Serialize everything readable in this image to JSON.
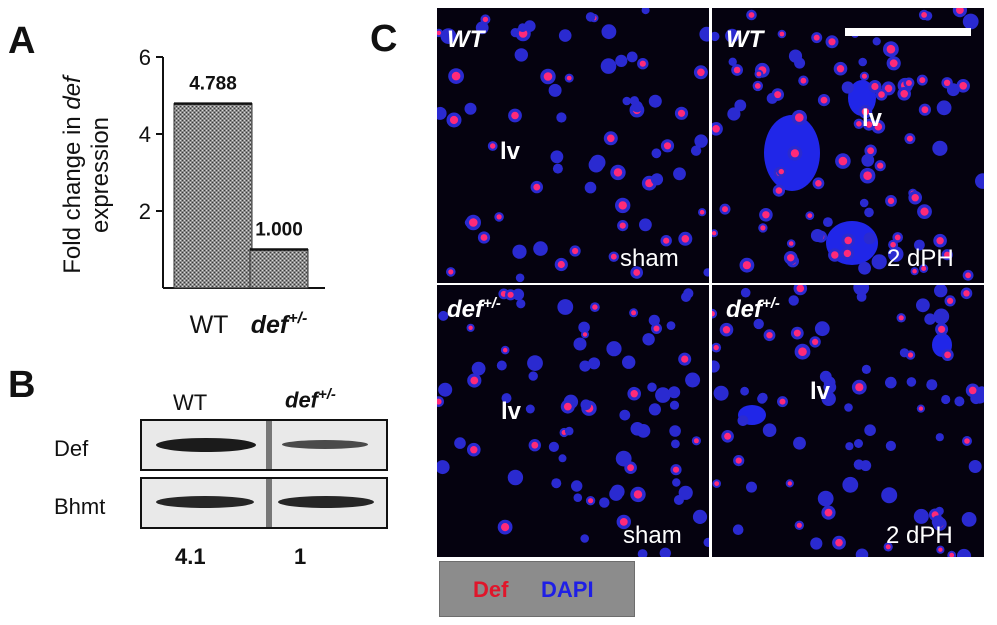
{
  "panels": {
    "a": "A",
    "b": "B",
    "c": "C"
  },
  "chart_data": {
    "type": "bar",
    "categories": [
      "WT",
      "def+/-"
    ],
    "values": [
      4.788,
      1.0
    ],
    "data_labels": [
      "4.788",
      "1.000"
    ],
    "ylabel_prefix": "Fold change in ",
    "ylabel_italic": "def",
    "ylabel_line2": "expression",
    "yticks": [
      2,
      4,
      6
    ],
    "ylim": [
      0,
      6
    ],
    "category_main": [
      "WT",
      "def"
    ],
    "category_sup": [
      "",
      "+/-"
    ],
    "bar_fill": "#8a8a8a",
    "grid": false
  },
  "blot": {
    "col_headers": [
      "WT",
      "def",
      "+/-"
    ],
    "rows": [
      "Def",
      "Bhmt"
    ],
    "quantification": [
      "4.1",
      "1"
    ]
  },
  "micrographs": [
    {
      "genotype": "WT",
      "genotype_sup": "",
      "landmark": "lv",
      "condition": "sham"
    },
    {
      "genotype": "WT",
      "genotype_sup": "",
      "landmark": "lv",
      "condition": ""
    },
    {
      "genotype": "def",
      "genotype_sup": "+/-",
      "landmark": "lv",
      "condition": "sham"
    },
    {
      "genotype": "def",
      "genotype_sup": "+/-",
      "landmark": "lv",
      "condition": "2 dPH"
    }
  ],
  "top_right_condition": "2 dPH",
  "legend": {
    "def_label": "Def",
    "dapi_label": "DAPI",
    "def_color": "#e0162b",
    "dapi_color": "#1f1fe6",
    "box_color": "#8c8c8c"
  }
}
